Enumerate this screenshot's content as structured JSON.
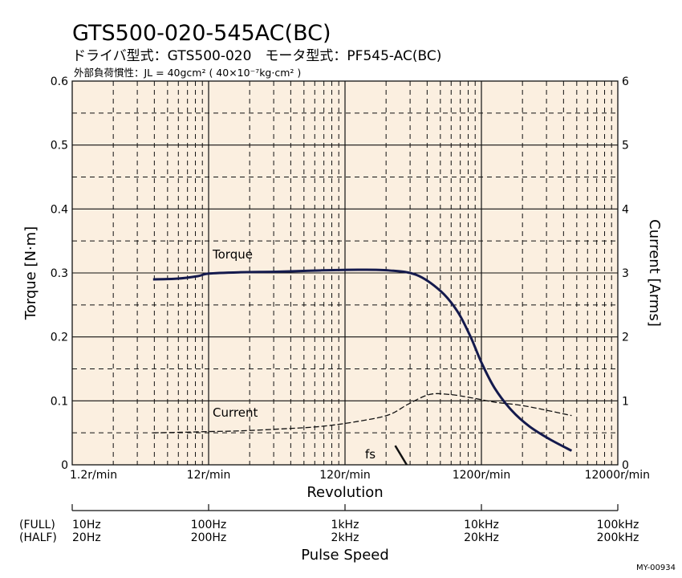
{
  "header": {
    "title": "GTS500-020-545AC(BC)",
    "subtitle": "ドライバ型式：GTS500-020　モータ型式：PF545-AC(BC)",
    "inertia": "外部負荷慣性：JL = 40gcm² ( 40×10⁻⁷kg·cm² )"
  },
  "code": "MY-00934",
  "colors": {
    "plot_bg": "#fbefe0",
    "torque": "#141a4d",
    "current": "#111111",
    "grid": "#111111"
  },
  "chart_data": {
    "type": "line",
    "x_scale": "log",
    "x_unit": "r/min",
    "xlim": [
      1.2,
      12000
    ],
    "xlabel": "Revolution",
    "x_ticks": [
      "1.2r/min",
      "12r/min",
      "120r/min",
      "1200r/min",
      "12000r/min"
    ],
    "y_left": {
      "label": "Torque [N·m]",
      "lim": [
        0,
        0.6
      ],
      "ticks": [
        "0",
        "0.1",
        "0.2",
        "0.3",
        "0.4",
        "0.5",
        "0.6"
      ]
    },
    "y_right": {
      "label": "Current [Arms]",
      "lim": [
        0,
        6
      ],
      "ticks": [
        "0",
        "1",
        "2",
        "3",
        "4",
        "5",
        "6"
      ]
    },
    "grid": true,
    "series": [
      {
        "name": "Torque",
        "axis": "left",
        "x": [
          4.7,
          7,
          10,
          12,
          20,
          40,
          80,
          150,
          250,
          400,
          600,
          800,
          1000,
          1200,
          1500,
          2000,
          2700,
          3800,
          5500
        ],
        "y": [
          0.29,
          0.291,
          0.295,
          0.299,
          0.301,
          0.302,
          0.304,
          0.305,
          0.304,
          0.297,
          0.272,
          0.24,
          0.2,
          0.16,
          0.12,
          0.085,
          0.06,
          0.04,
          0.022
        ]
      },
      {
        "name": "Current",
        "axis": "right",
        "x": [
          4.7,
          8,
          12,
          20,
          40,
          80,
          150,
          250,
          350,
          500,
          700,
          1000,
          1500,
          2500,
          5500
        ],
        "y": [
          0.5,
          0.51,
          0.52,
          0.53,
          0.56,
          0.6,
          0.68,
          0.78,
          0.95,
          1.1,
          1.1,
          1.05,
          0.98,
          0.92,
          0.77
        ]
      }
    ],
    "fs_marker": {
      "label": "fs",
      "x": [
        280,
        340
      ],
      "y": [
        0.03,
        0.0
      ]
    },
    "pulse_speed": {
      "label": "Pulse Speed",
      "row_labels": [
        "(FULL)",
        "(HALF)"
      ],
      "full": [
        "10Hz",
        "100Hz",
        "1kHz",
        "10kHz",
        "100kHz"
      ],
      "half": [
        "20Hz",
        "200Hz",
        "2kHz",
        "20kHz",
        "200kHz"
      ]
    }
  }
}
